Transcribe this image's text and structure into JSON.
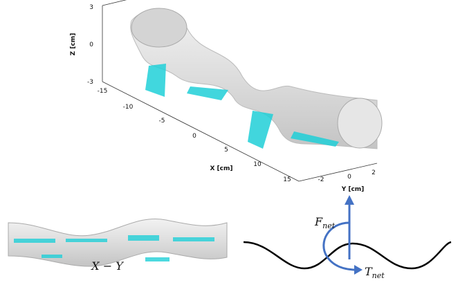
{
  "axes": {
    "z": {
      "label": "Z [cm]",
      "ticks": [
        "3",
        "0",
        "-3"
      ]
    },
    "x": {
      "label": "X [cm]",
      "ticks": [
        "-15",
        "-10",
        "-5",
        "0",
        "5",
        "10",
        "15"
      ]
    },
    "y": {
      "label": "Y [cm]",
      "ticks": [
        "-2",
        "0",
        "2"
      ]
    }
  },
  "labels": {
    "projection": "X − Y",
    "force": {
      "symbol": "F",
      "subscript": "net"
    },
    "torque": {
      "symbol": "T",
      "subscript": "net"
    }
  }
}
